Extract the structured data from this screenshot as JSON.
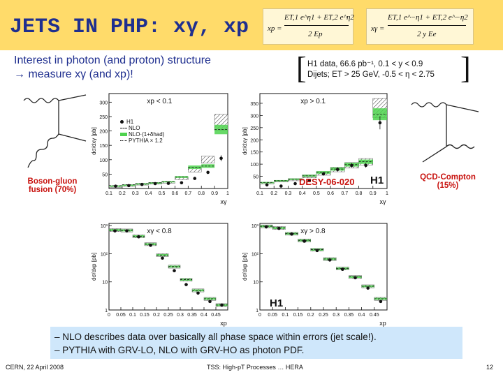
{
  "title": "JETS IN PHP: xγ, xp",
  "formulas": {
    "xp": {
      "lhs": "xp =",
      "numerator": "ET,1 e^η1 + ET,2 e^η2",
      "denominator": "2 Ep"
    },
    "xgamma": {
      "lhs": "xγ =",
      "numerator": "ET,1 e^−η1 + ET,2 e^−η2",
      "denominator": "2 y Ee"
    }
  },
  "subtitle_line1": "Interest in photon (and proton) structure",
  "subtitle_line2": "→ measure xγ (and xp)!",
  "data_info": {
    "line1": "H1 data, 66.6 pb⁻¹, 0.1 < y < 0.9",
    "line2": "Dijets; ET > 25 GeV, -0.5 < η < 2.75"
  },
  "diagram_left_caption": [
    "Boson-gluon",
    "fusion (70%)"
  ],
  "diagram_right_caption": [
    "QCD-Compton",
    "(15%)"
  ],
  "desy_label": "DESY-06-020",
  "h1_logo": "H1",
  "legend": [
    "H1",
    "NLO",
    "NLO·(1+δhad)",
    "PYTHIA × 1.2"
  ],
  "colors": {
    "title_bar": "#ffdb6a",
    "title_text": "#1f2f8f",
    "caption_red": "#c8120e",
    "nlo_band": "#4ed24e",
    "notes_bg": "#cfe7fb"
  },
  "chart_data": [
    {
      "type": "step",
      "panel": "top-left",
      "label": "xp < 0.1",
      "xlabel": "xγ",
      "ylabel": "dσ/dxγ [pb]",
      "x_ticks": [
        "0.1",
        "0.2",
        "0.3",
        "0.4",
        "0.5",
        "0.6",
        "0.7",
        "0.8",
        "0.9",
        "1"
      ],
      "y_ticks": [
        "50",
        "100",
        "150",
        "200",
        "250",
        "300"
      ],
      "xlim": [
        0.1,
        1.0
      ],
      "ylim": [
        0,
        330
      ],
      "bins": [
        0.1,
        0.2,
        0.3,
        0.4,
        0.5,
        0.6,
        0.7,
        0.8,
        0.9,
        1.0
      ],
      "data": [
        8,
        10,
        14,
        17,
        18,
        20,
        35,
        56,
        105
      ],
      "nlo": [
        10,
        13,
        17,
        20,
        24,
        40,
        74,
        78,
        205
      ],
      "pythia": [
        8,
        11,
        15,
        18,
        21,
        35,
        65,
        100,
        230
      ]
    },
    {
      "type": "step",
      "panel": "top-right",
      "label": "xp > 0.1",
      "xlabel": "xγ",
      "ylabel": "dσ/dxγ [pb]",
      "x_ticks": [
        "0.1",
        "0.2",
        "0.3",
        "0.4",
        "0.5",
        "0.6",
        "0.7",
        "0.8",
        "0.9",
        "1"
      ],
      "y_ticks": [
        "50",
        "100",
        "150",
        "200",
        "250",
        "300",
        "350"
      ],
      "xlim": [
        0.1,
        1.0
      ],
      "ylim": [
        0,
        390
      ],
      "bins": [
        0.1,
        0.2,
        0.3,
        0.4,
        0.5,
        0.6,
        0.7,
        0.8,
        0.9,
        1.0
      ],
      "data": [
        15,
        10,
        20,
        32,
        60,
        78,
        95,
        95,
        270
      ],
      "nlo": [
        25,
        32,
        38,
        52,
        66,
        80,
        98,
        110,
        305
      ],
      "pythia": [
        22,
        30,
        36,
        50,
        62,
        78,
        95,
        110,
        330
      ]
    },
    {
      "type": "step",
      "panel": "bottom-left",
      "label": "xγ < 0.8",
      "xlabel": "xp",
      "ylabel": "dσ/dxp [pb]",
      "x_ticks": [
        "0",
        "0.05",
        "0.1",
        "0.15",
        "0.2",
        "0.25",
        "0.3",
        "0.35",
        "0.4",
        "0.45"
      ],
      "y_ticks": [
        "1",
        "10",
        "10²",
        "10³"
      ],
      "yscale": "log",
      "xlim": [
        0,
        0.5
      ],
      "ylim": [
        1,
        1200
      ],
      "bins": [
        0,
        0.05,
        0.1,
        0.15,
        0.2,
        0.25,
        0.3,
        0.35,
        0.4,
        0.45,
        0.5
      ],
      "data": [
        650,
        650,
        400,
        200,
        70,
        25,
        8,
        4,
        2,
        1.5
      ],
      "nlo": [
        700,
        680,
        420,
        220,
        90,
        35,
        12,
        5,
        2.5,
        1.5
      ],
      "pythia": [
        700,
        680,
        420,
        220,
        90,
        35,
        12,
        5,
        2.5,
        1.5
      ]
    },
    {
      "type": "step",
      "panel": "bottom-right",
      "label": "xγ > 0.8",
      "xlabel": "xp",
      "ylabel": "dσ/dxp [pb]",
      "x_ticks": [
        "0",
        "0.05",
        "0.1",
        "0.15",
        "0.2",
        "0.25",
        "0.3",
        "0.35",
        "0.4",
        "0.45"
      ],
      "y_ticks": [
        "1",
        "10",
        "10²",
        "10³"
      ],
      "yscale": "log",
      "xlim": [
        0,
        0.5
      ],
      "ylim": [
        1,
        1200
      ],
      "bins": [
        0,
        0.05,
        0.1,
        0.15,
        0.2,
        0.25,
        0.3,
        0.35,
        0.4,
        0.45,
        0.5
      ],
      "data": [
        900,
        800,
        500,
        280,
        130,
        60,
        28,
        14,
        6,
        2
      ],
      "nlo": [
        950,
        830,
        520,
        300,
        140,
        65,
        30,
        15,
        7,
        2.5
      ],
      "pythia": [
        950,
        830,
        520,
        300,
        140,
        65,
        30,
        15,
        7,
        2.5
      ]
    }
  ],
  "notes": [
    "– NLO describes data over basically all phase space within errors (jet scale!).",
    "– PYTHIA with GRV-LO, NLO with GRV-HO as photon PDF."
  ],
  "footer": {
    "left": "CERN, 22 April 2008",
    "center": "TSS: High-pT Processes … HERA",
    "page": "12"
  }
}
